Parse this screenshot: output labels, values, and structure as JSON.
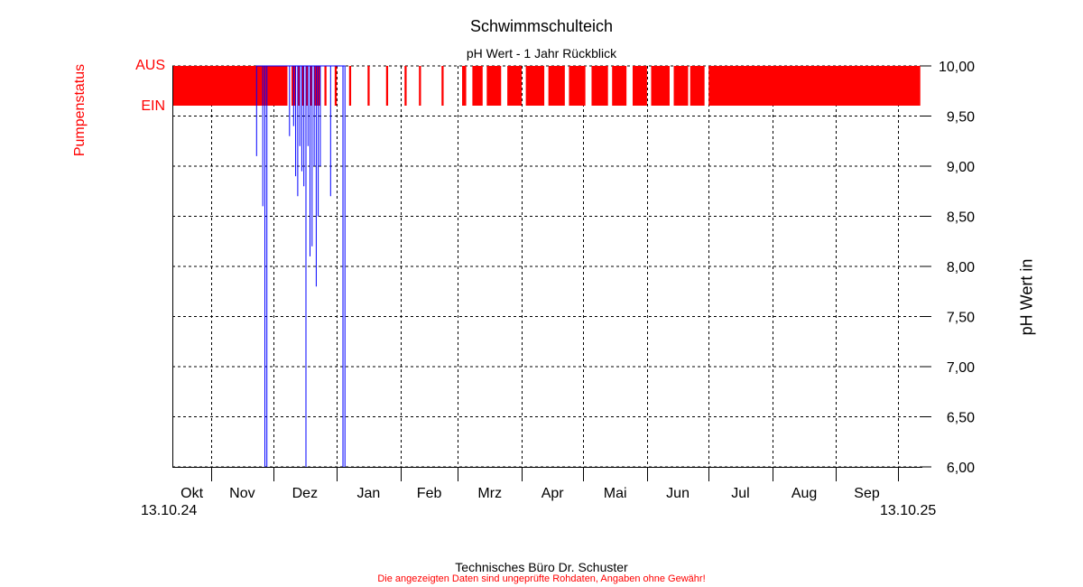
{
  "chart_data": {
    "type": "line",
    "title": "Schwimmschulteich",
    "subtitle": "pH Wert - 1 Jahr Rückblick",
    "ylabel": "pH Wert in",
    "y2label": "Pumpenstatus",
    "ylim": [
      6.0,
      10.0
    ],
    "yticks": [
      "10,00",
      "9,50",
      "9,00",
      "8,50",
      "8,00",
      "7,50",
      "7,00",
      "6,50",
      "6,00"
    ],
    "ytick_values": [
      10.0,
      9.5,
      9.0,
      8.5,
      8.0,
      7.5,
      7.0,
      6.5,
      6.0
    ],
    "y2ticks": [
      "AUS",
      "EIN"
    ],
    "xlim": [
      "2024-10-13",
      "2025-10-13"
    ],
    "xtick_labels": [
      "Okt",
      "Nov",
      "Dez",
      "Jan",
      "Feb",
      "Mrz",
      "Apr",
      "Mai",
      "Jun",
      "Jul",
      "Aug",
      "Sep"
    ],
    "month_starts": [
      "2024-10-01",
      "2024-11-01",
      "2024-12-01",
      "2025-01-01",
      "2025-02-01",
      "2025-03-01",
      "2025-04-01",
      "2025-05-01",
      "2025-06-01",
      "2025-07-01",
      "2025-08-01",
      "2025-09-01",
      "2025-10-01"
    ],
    "date_start_label": "13.10.24",
    "date_end_label": "13.10.25",
    "grid": true,
    "colors": {
      "ph_series": "#0000ff",
      "pump_series": "#ff0000",
      "grid": "#000000"
    },
    "series": [
      {
        "name": "pH Wert",
        "points": [
          {
            "x": "2024-11-23",
            "y": 10.0
          },
          {
            "x": "2024-11-23",
            "y": 9.1
          },
          {
            "x": "2024-11-23",
            "y": 10.0
          },
          {
            "x": "2024-11-26",
            "y": 10.0
          },
          {
            "x": "2024-11-26",
            "y": 8.6
          },
          {
            "x": "2024-11-26",
            "y": 10.0
          },
          {
            "x": "2024-11-27",
            "y": 10.0
          },
          {
            "x": "2024-11-27",
            "y": 6.0
          },
          {
            "x": "2024-11-27",
            "y": 10.0
          },
          {
            "x": "2024-11-28",
            "y": 10.0
          },
          {
            "x": "2024-11-28",
            "y": 6.0
          },
          {
            "x": "2024-11-28",
            "y": 10.0
          },
          {
            "x": "2024-12-09",
            "y": 10.0
          },
          {
            "x": "2024-12-09",
            "y": 9.3
          },
          {
            "x": "2024-12-09",
            "y": 10.0
          },
          {
            "x": "2024-12-11",
            "y": 10.0
          },
          {
            "x": "2024-12-11",
            "y": 9.4
          },
          {
            "x": "2024-12-11",
            "y": 10.0
          },
          {
            "x": "2024-12-12",
            "y": 10.0
          },
          {
            "x": "2024-12-12",
            "y": 8.9
          },
          {
            "x": "2024-12-12",
            "y": 10.0
          },
          {
            "x": "2024-12-13",
            "y": 10.0
          },
          {
            "x": "2024-12-13",
            "y": 8.7
          },
          {
            "x": "2024-12-13",
            "y": 10.0
          },
          {
            "x": "2024-12-14",
            "y": 10.0
          },
          {
            "x": "2024-12-14",
            "y": 9.2
          },
          {
            "x": "2024-12-14",
            "y": 10.0
          },
          {
            "x": "2024-12-15",
            "y": 10.0
          },
          {
            "x": "2024-12-15",
            "y": 8.95
          },
          {
            "x": "2024-12-15",
            "y": 10.0
          },
          {
            "x": "2024-12-16",
            "y": 10.0
          },
          {
            "x": "2024-12-16",
            "y": 8.8
          },
          {
            "x": "2024-12-16",
            "y": 10.0
          },
          {
            "x": "2024-12-17",
            "y": 10.0
          },
          {
            "x": "2024-12-17",
            "y": 6.0
          },
          {
            "x": "2024-12-17",
            "y": 10.0
          },
          {
            "x": "2024-12-18",
            "y": 10.0
          },
          {
            "x": "2024-12-18",
            "y": 9.2
          },
          {
            "x": "2024-12-18",
            "y": 10.0
          },
          {
            "x": "2024-12-19",
            "y": 10.0
          },
          {
            "x": "2024-12-19",
            "y": 8.1
          },
          {
            "x": "2024-12-19",
            "y": 10.0
          },
          {
            "x": "2024-12-20",
            "y": 10.0
          },
          {
            "x": "2024-12-20",
            "y": 8.2
          },
          {
            "x": "2024-12-20",
            "y": 10.0
          },
          {
            "x": "2024-12-21",
            "y": 10.0
          },
          {
            "x": "2024-12-21",
            "y": 9.0
          },
          {
            "x": "2024-12-21",
            "y": 10.0
          },
          {
            "x": "2024-12-22",
            "y": 10.0
          },
          {
            "x": "2024-12-22",
            "y": 7.8
          },
          {
            "x": "2024-12-22",
            "y": 10.0
          },
          {
            "x": "2024-12-23",
            "y": 10.0
          },
          {
            "x": "2024-12-23",
            "y": 8.5
          },
          {
            "x": "2024-12-23",
            "y": 10.0
          },
          {
            "x": "2024-12-24",
            "y": 10.0
          },
          {
            "x": "2024-12-24",
            "y": 9.0
          },
          {
            "x": "2024-12-24",
            "y": 10.0
          },
          {
            "x": "2024-12-29",
            "y": 10.0
          },
          {
            "x": "2024-12-29",
            "y": 8.7
          },
          {
            "x": "2024-12-29",
            "y": 10.0
          },
          {
            "x": "2025-01-04",
            "y": 10.0
          },
          {
            "x": "2025-01-04",
            "y": 6.0
          },
          {
            "x": "2025-01-04",
            "y": 10.0
          },
          {
            "x": "2025-01-05",
            "y": 10.0
          },
          {
            "x": "2025-01-05",
            "y": 6.0
          },
          {
            "x": "2025-01-05",
            "y": 10.0
          }
        ]
      },
      {
        "name": "Pumpenstatus",
        "on_intervals": [
          [
            "2024-10-13",
            "2024-12-08"
          ],
          [
            "2024-12-10",
            "2024-12-12"
          ],
          [
            "2024-12-13",
            "2024-12-14"
          ],
          [
            "2024-12-15",
            "2024-12-16"
          ],
          [
            "2024-12-17",
            "2024-12-18"
          ],
          [
            "2024-12-19",
            "2024-12-20"
          ],
          [
            "2024-12-21",
            "2024-12-24"
          ],
          [
            "2024-12-26",
            "2024-12-27"
          ],
          [
            "2024-12-31",
            "2025-01-01"
          ],
          [
            "2025-01-07",
            "2025-01-08"
          ],
          [
            "2025-01-16",
            "2025-01-17"
          ],
          [
            "2025-01-25",
            "2025-01-26"
          ],
          [
            "2025-02-03",
            "2025-02-04"
          ],
          [
            "2025-02-10",
            "2025-02-11"
          ],
          [
            "2025-02-21",
            "2025-02-22"
          ],
          [
            "2025-03-03",
            "2025-03-05"
          ],
          [
            "2025-03-08",
            "2025-03-13"
          ],
          [
            "2025-03-15",
            "2025-03-22"
          ],
          [
            "2025-03-25",
            "2025-04-01"
          ],
          [
            "2025-04-03",
            "2025-04-12"
          ],
          [
            "2025-04-14",
            "2025-04-22"
          ],
          [
            "2025-04-24",
            "2025-05-02"
          ],
          [
            "2025-05-05",
            "2025-05-13"
          ],
          [
            "2025-05-15",
            "2025-05-22"
          ],
          [
            "2025-05-25",
            "2025-06-01"
          ],
          [
            "2025-06-03",
            "2025-06-12"
          ],
          [
            "2025-06-14",
            "2025-06-21"
          ],
          [
            "2025-06-22",
            "2025-06-29"
          ],
          [
            "2025-07-01",
            "2025-10-12"
          ]
        ]
      }
    ]
  },
  "footer": {
    "credit": "Technisches Büro Dr. Schuster",
    "disclaimer": "Die angezeigten Daten sind ungeprüfte Rohdaten, Angaben ohne Gewähr!"
  }
}
